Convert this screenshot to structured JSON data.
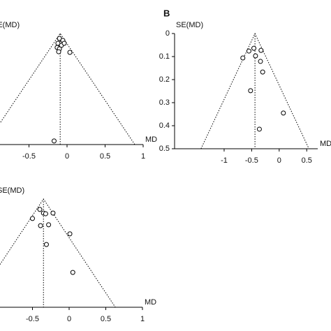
{
  "chart_data": [
    {
      "type": "funnel",
      "y_label": "SE(MD)",
      "x_label": "MD",
      "pooled": -0.09,
      "xlim": [
        -1,
        1
      ],
      "ylim": [
        0,
        0.5
      ],
      "xticks": [
        -0.5,
        0,
        0.5,
        1
      ],
      "x": [
        -0.1,
        -0.055,
        -0.12,
        -0.073,
        -0.13,
        -0.1,
        -0.037,
        -0.11,
        0.037,
        -0.17
      ],
      "values": [
        0.022,
        0.031,
        0.044,
        0.053,
        0.063,
        0.069,
        0.044,
        0.082,
        0.085,
        0.484
      ]
    },
    {
      "type": "funnel",
      "panel_label": "B",
      "y_label": "SE(MD)",
      "x_label": "MD",
      "pooled": -0.44,
      "xlim": [
        -1.9,
        0.7
      ],
      "ylim": [
        0,
        0.5
      ],
      "xticks": [
        -1,
        -0.5,
        0,
        0.5
      ],
      "yticks": [
        0,
        0.1,
        0.2,
        0.3,
        0.4,
        0.5
      ],
      "x": [
        -0.55,
        -0.66,
        -0.46,
        -0.33,
        -0.43,
        -0.34,
        -0.3,
        -0.52,
        0.076,
        -0.36
      ],
      "values": [
        0.076,
        0.106,
        0.064,
        0.073,
        0.097,
        0.121,
        0.167,
        0.248,
        0.345,
        0.415
      ]
    },
    {
      "type": "funnel",
      "y_label": "SE(MD)",
      "x_label": "MD",
      "pooled": -0.35,
      "xlim": [
        -1,
        1
      ],
      "ylim": [
        0,
        0.5
      ],
      "xticks": [
        -0.5,
        0,
        0.5,
        1
      ],
      "x": [
        -0.4,
        -0.5,
        -0.35,
        -0.32,
        -0.22,
        -0.39,
        -0.28,
        0.01,
        -0.31,
        0.05
      ],
      "values": [
        0.048,
        0.09,
        0.065,
        0.068,
        0.065,
        0.123,
        0.119,
        0.161,
        0.21,
        0.339
      ]
    }
  ]
}
